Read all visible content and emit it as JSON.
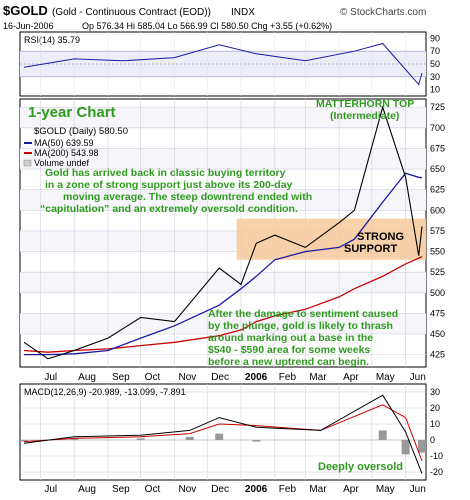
{
  "header": {
    "symbol": "$GOLD",
    "desc": "(Gold - Continuous Contract (EOD))",
    "exchange": "INDX",
    "date": "16-Jun-2006",
    "ohlc": "Op 576.34  Hi 585.04  Lo 566.99  Cl 580.50  Chg +3.55 (+0.62%)",
    "source": "© StockCharts.com"
  },
  "rsi": {
    "label": "RSI(14) 35.79",
    "levels": [
      "90",
      "70",
      "50",
      "30",
      "10"
    ]
  },
  "price_panel": {
    "title": "1-year Chart",
    "legend": [
      "$GOLD (Daily) 580.50",
      "MA(50) 639.59",
      "MA(200) 543.98",
      "Volume undef"
    ],
    "y_ticks": [
      "725",
      "700",
      "675",
      "650",
      "625",
      "600",
      "575",
      "550",
      "525",
      "500",
      "475",
      "450",
      "425"
    ],
    "annotation_top": [
      "Gold has arrived back in classic buying territory",
      "in a zone of strong support just above its 200-day",
      "moving average. The steep downtrend ended with",
      "“capitulation” and an extremely oversold condition."
    ],
    "annotation_bottom": [
      "After the damage to sentiment caused",
      "by the plunge, gold is likely to thrash",
      "around marking out a base in the",
      "$540 - $590 area for some weeks",
      "before a new uptrend can begin."
    ],
    "matterhorn": [
      "MATTERHORN TOP",
      "(Intermediate)"
    ],
    "support": [
      "STRONG",
      "SUPPORT"
    ]
  },
  "x_labels": [
    "Jul",
    "Aug",
    "Sep",
    "Oct",
    "Nov",
    "Dec",
    "2006",
    "Feb",
    "Mar",
    "Apr",
    "May",
    "Jun"
  ],
  "macd": {
    "label": "MACD(12,26,9) -20.989, -13.099, -7.891",
    "y_ticks": [
      "30",
      "20",
      "10",
      "0",
      "-10",
      "-20"
    ],
    "annotation": "Deeply oversold"
  },
  "colors": {
    "price": "#000000",
    "ma50": "#1a1aa8",
    "ma200": "#cc0000",
    "support_zone": "#f5c99a",
    "annotation": "#2e9b1f",
    "band": "#ededf7"
  },
  "chart_data": [
    {
      "type": "line",
      "name": "RSI(14)",
      "x": [
        "2005-06-16",
        "2005-08-01",
        "2005-09-15",
        "2005-11-01",
        "2005-12-12",
        "2006-01-15",
        "2006-03-01",
        "2006-04-15",
        "2006-05-11",
        "2006-06-13",
        "2006-06-16"
      ],
      "values": [
        45,
        58,
        55,
        60,
        80,
        66,
        55,
        70,
        82,
        18,
        36
      ],
      "ylim": [
        0,
        100
      ]
    },
    {
      "type": "line",
      "title": "$GOLD (Daily)",
      "x": [
        "2005-06-16",
        "2005-07-08",
        "2005-08-01",
        "2005-09-01",
        "2005-10-01",
        "2005-11-01",
        "2005-12-12",
        "2006-01-01",
        "2006-01-15",
        "2006-02-01",
        "2006-03-01",
        "2006-04-01",
        "2006-04-15",
        "2006-05-11",
        "2006-06-01",
        "2006-06-13",
        "2006-06-16"
      ],
      "series": [
        {
          "name": "$GOLD",
          "values": [
            440,
            420,
            430,
            445,
            470,
            465,
            530,
            510,
            560,
            570,
            555,
            585,
            600,
            725,
            640,
            545,
            580.5
          ]
        },
        {
          "name": "MA(50)",
          "values": [
            425,
            425,
            426,
            430,
            445,
            460,
            485,
            505,
            520,
            540,
            550,
            555,
            565,
            610,
            645,
            640,
            639.59
          ]
        },
        {
          "name": "MA(200)",
          "values": [
            430,
            428,
            430,
            432,
            436,
            440,
            448,
            455,
            465,
            472,
            480,
            495,
            505,
            520,
            535,
            542,
            543.98
          ]
        }
      ],
      "ylim": [
        410,
        735
      ],
      "support_zone": [
        540,
        590
      ]
    },
    {
      "type": "line",
      "title": "MACD(12,26,9)",
      "x": [
        "2005-06-16",
        "2005-08-01",
        "2005-10-01",
        "2005-11-15",
        "2005-12-12",
        "2006-01-15",
        "2006-03-15",
        "2006-05-11",
        "2006-06-01",
        "2006-06-16"
      ],
      "series": [
        {
          "name": "MACD",
          "values": [
            -2,
            2,
            3,
            6,
            14,
            8,
            6,
            28,
            5,
            -20.989
          ]
        },
        {
          "name": "Signal",
          "values": [
            -1,
            1,
            2,
            4,
            10,
            9,
            6,
            22,
            14,
            -13.099
          ]
        },
        {
          "name": "Histogram",
          "values": [
            -1,
            1,
            1,
            2,
            4,
            -1,
            0,
            6,
            -9,
            -7.891
          ]
        }
      ],
      "ylim": [
        -25,
        35
      ]
    }
  ]
}
